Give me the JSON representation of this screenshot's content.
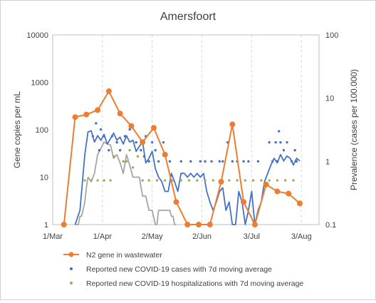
{
  "chart_data": {
    "type": "line",
    "title": "Amersfoort",
    "ylabel_left": "Gene copies per mL",
    "ylabel_right": "Prevalence (cases per 100.000)",
    "x_unit": "date (2020)",
    "x_ticks": [
      {
        "label": "1/Mar",
        "day": 0
      },
      {
        "label": "1/Apr",
        "day": 31
      },
      {
        "label": "2/May",
        "day": 62
      },
      {
        "label": "2/Jun",
        "day": 93
      },
      {
        "label": "3/Jul",
        "day": 124
      },
      {
        "label": "3/Aug",
        "day": 155
      }
    ],
    "y_left": {
      "scale": "log",
      "min": 1,
      "max": 10000,
      "ticks": [
        "1",
        "10",
        "100",
        "1000",
        "10000"
      ]
    },
    "y_right": {
      "scale": "log",
      "min": 0.1,
      "max": 100,
      "ticks": [
        "0.1",
        "1",
        "10",
        "100"
      ]
    },
    "grid": "vertical dashed",
    "legend_position": "bottom",
    "series": [
      {
        "name": "N2 gene in wastewater",
        "style": "line-markers",
        "color": "#ED7D31",
        "axis": "left",
        "x": [
          7,
          14,
          21,
          28,
          35,
          42,
          49,
          56,
          63,
          70,
          77,
          84,
          91,
          98,
          105,
          112,
          119,
          126,
          133,
          140,
          147,
          154
        ],
        "y": [
          1,
          185,
          210,
          260,
          650,
          220,
          120,
          55,
          110,
          30,
          3,
          1,
          1,
          1,
          8,
          130,
          3,
          1,
          7,
          5,
          4.5,
          2.8
        ]
      },
      {
        "name": "Reported new COVID-19 cases with 7d moving average",
        "style": "dots",
        "color": "#4472C4",
        "axis": "right",
        "x": [
          25,
          27,
          29,
          30,
          32,
          35,
          37,
          40,
          42,
          45,
          48,
          52,
          55,
          57,
          58,
          60,
          62,
          64,
          66,
          69,
          73,
          80,
          86,
          92,
          95,
          99,
          104,
          106,
          109,
          112,
          115,
          119,
          122,
          128,
          135,
          137,
          139,
          140,
          141,
          142,
          144,
          146,
          149,
          151,
          152
        ],
        "y": [
          2.5,
          4.0,
          1.5,
          3.2,
          2.5,
          1.5,
          2.5,
          2.0,
          1.5,
          2.5,
          3.2,
          2.0,
          1.5,
          1.2,
          2.5,
          1.0,
          2.0,
          1.5,
          1.0,
          2.0,
          1.0,
          1.0,
          1.0,
          1.0,
          1.0,
          1.0,
          1.0,
          1.0,
          2.0,
          1.0,
          1.0,
          1.0,
          1.0,
          1.0,
          2.0,
          1.0,
          2.0,
          1.0,
          3.0,
          2.0,
          1.5,
          2.0,
          1.0,
          1.5,
          1.0
        ]
      },
      {
        "name": "Reported new COVID-19 hospitalizations with 7d moving average",
        "style": "dots",
        "color": "#A5A55A",
        "axis": "right",
        "x": [
          20,
          24,
          28,
          32,
          36,
          38,
          40,
          42,
          44,
          46,
          48,
          50,
          53,
          56,
          60,
          65,
          70,
          75,
          80,
          85,
          90,
          95,
          100,
          105,
          110,
          115,
          120,
          125,
          130,
          135,
          140,
          145,
          150
        ],
        "y": [
          0.5,
          0.5,
          0.5,
          0.5,
          0.5,
          1.2,
          2.0,
          1.5,
          1.0,
          1.0,
          1.5,
          0.8,
          1.2,
          0.5,
          0.5,
          0.5,
          0.5,
          0.5,
          0.5,
          0.5,
          0.5,
          0.5,
          0.5,
          0.5,
          0.5,
          0.5,
          0.5,
          0.5,
          0.5,
          0.5,
          0.5,
          0.5,
          0.5
        ]
      },
      {
        "style": "line",
        "color": "#4472C4",
        "axis": "left",
        "x": [
          14,
          17,
          18,
          20,
          22,
          24,
          26,
          28,
          30,
          32,
          34,
          36,
          38,
          40,
          42,
          44,
          46,
          48,
          50,
          52,
          54,
          56,
          58,
          60,
          62,
          64,
          66,
          68,
          70,
          72,
          74,
          76,
          78,
          80,
          82,
          84,
          86,
          88,
          90,
          92,
          94,
          96,
          98,
          100,
          102,
          104,
          106,
          108,
          110,
          112,
          114,
          116,
          118,
          120,
          122,
          124,
          126,
          128,
          130,
          132,
          134,
          136,
          138,
          140,
          142,
          144,
          146,
          148,
          150,
          152,
          154
        ],
        "y": [
          1,
          2,
          5,
          30,
          90,
          95,
          55,
          75,
          60,
          80,
          50,
          65,
          85,
          60,
          70,
          50,
          75,
          55,
          60,
          35,
          45,
          55,
          20,
          25,
          35,
          15,
          10,
          8,
          5,
          5,
          12,
          8,
          5,
          12,
          12,
          10,
          12,
          10,
          12,
          10,
          12,
          5,
          3,
          2,
          3,
          5,
          6,
          2,
          3,
          1,
          1,
          5,
          3,
          1,
          2,
          5,
          1,
          2,
          3,
          8,
          12,
          18,
          25,
          20,
          30,
          22,
          28,
          25,
          18,
          25,
          22
        ]
      },
      {
        "style": "line",
        "color": "#A5A5A5",
        "axis": "left",
        "x": [
          14,
          16,
          17,
          18,
          20,
          21,
          22,
          24,
          26,
          28,
          30,
          32,
          34,
          36,
          38,
          40,
          42,
          44,
          46,
          48,
          50,
          52,
          54,
          56,
          58,
          60,
          62,
          64,
          65,
          66,
          69,
          70,
          71,
          72,
          73,
          74,
          75,
          76,
          77
        ],
        "y": [
          1,
          1,
          1.5,
          1.5,
          3,
          6,
          10,
          8,
          12,
          30,
          40,
          55,
          50,
          48,
          25,
          30,
          20,
          12,
          30,
          18,
          10,
          10,
          10,
          4,
          4,
          2,
          2,
          1,
          1,
          2,
          2,
          2,
          2,
          2,
          2,
          1.5,
          1.5,
          1,
          1
        ]
      }
    ]
  }
}
